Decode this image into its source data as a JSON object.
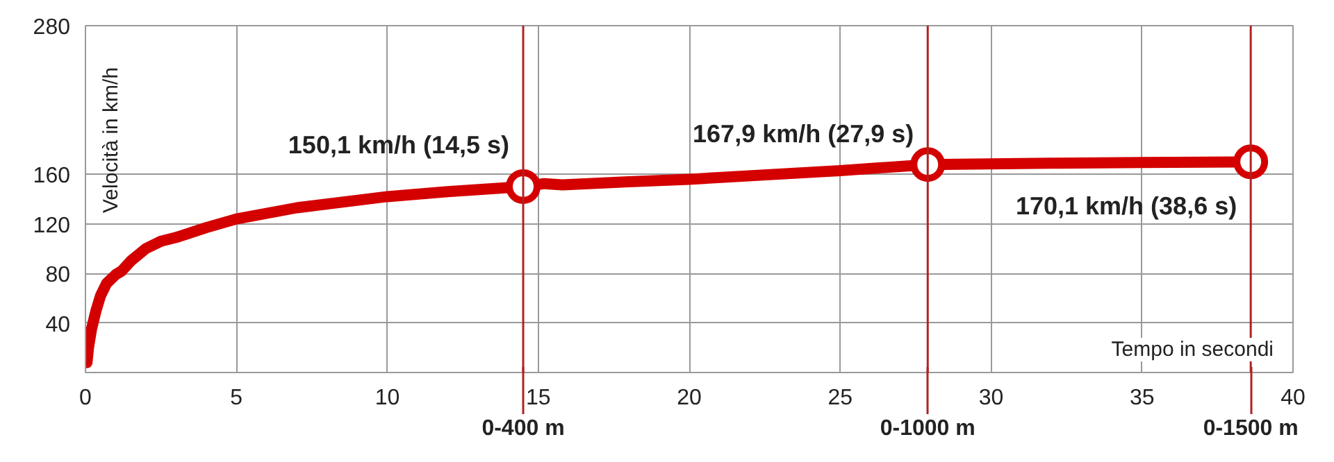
{
  "chart_data": {
    "type": "line",
    "xlabel": "Tempo in secondi",
    "ylabel": "Velocità in km/h",
    "xlim": [
      0,
      40
    ],
    "ylim": [
      0,
      280
    ],
    "xticks": [
      0,
      5,
      10,
      15,
      20,
      25,
      30,
      35,
      40
    ],
    "yticks": [
      40,
      80,
      120,
      160,
      280
    ],
    "grid": true,
    "line_style": "solid",
    "series": [
      {
        "color": "#d40000",
        "marker": "none",
        "x": [
          0.05,
          0.1,
          0.2,
          0.35,
          0.5,
          0.7,
          1.0,
          1.2,
          1.5,
          2,
          2.5,
          3,
          4,
          5,
          7,
          10,
          12,
          14.5,
          15.2,
          15.8,
          18,
          20,
          25,
          27.9,
          32,
          35,
          38.6
        ],
        "values": [
          8,
          20,
          35,
          50,
          62,
          72,
          79,
          82,
          90,
          100,
          106,
          109,
          117,
          124,
          133,
          142,
          146,
          150.1,
          152.5,
          151.5,
          154,
          156,
          163,
          167.9,
          169,
          169.5,
          170.1
        ]
      },
      {
        "color": "#d40000",
        "type": "scatter",
        "marker": "circle",
        "x": [
          14.5,
          27.9,
          38.6
        ],
        "values": [
          150.1,
          167.9,
          170.1
        ]
      }
    ],
    "ref_lines": [
      {
        "axis": "x",
        "value": 14.5,
        "label": "0-400 m",
        "color": "#b22222",
        "line_style": "solid"
      },
      {
        "axis": "x",
        "value": 27.9,
        "label": "0-1000 m",
        "color": "#b22222",
        "line_style": "solid"
      },
      {
        "axis": "x",
        "value": 38.6,
        "label": "0-1500 m",
        "color": "#b22222",
        "line_style": "solid"
      }
    ],
    "annotations": [
      {
        "text": "150,1 km/h (14,5 s)",
        "x": 14.5,
        "y": 150.1
      },
      {
        "text": "167,9 km/h (27,9 s)",
        "x": 27.9,
        "y": 167.9
      },
      {
        "text": "170,1 km/h (38,6 s)",
        "x": 38.6,
        "y": 170.1
      }
    ]
  }
}
